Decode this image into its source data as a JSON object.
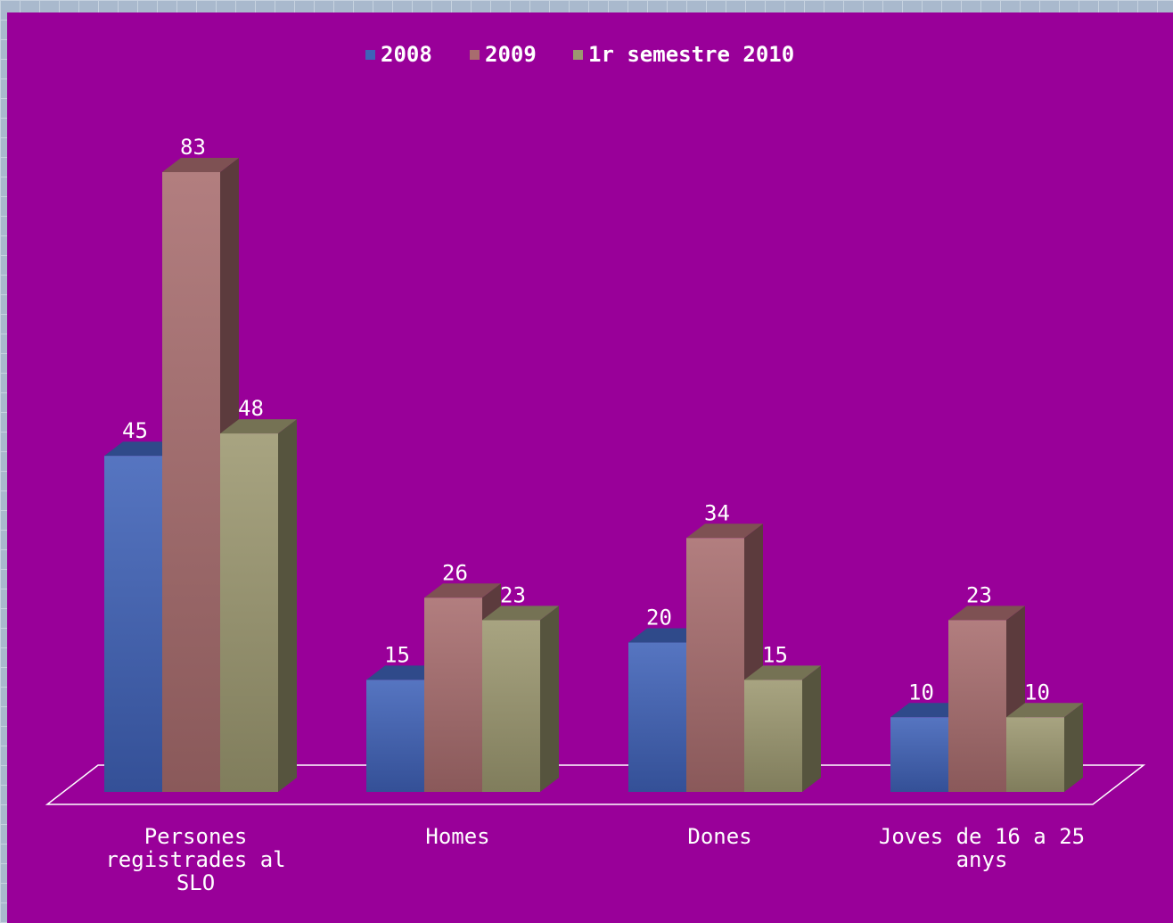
{
  "chart_data": {
    "type": "bar",
    "categories": [
      [
        "Persones",
        "registrades al",
        "SLO"
      ],
      [
        "Homes"
      ],
      [
        "Dones"
      ],
      [
        "Joves de 16 a 25",
        "anys"
      ]
    ],
    "series": [
      {
        "name": "2008",
        "values": [
          45,
          15,
          20,
          10
        ],
        "color": "#3f62b8"
      },
      {
        "name": "2009",
        "values": [
          83,
          26,
          34,
          23
        ],
        "color": "#a86c6e"
      },
      {
        "name": "1r semestre 2010",
        "values": [
          48,
          23,
          15,
          10
        ],
        "color": "#9c9870"
      }
    ],
    "ylim": [
      0,
      90
    ],
    "legend_position": "top",
    "grid": false,
    "three_d": true,
    "background": "#990099"
  }
}
